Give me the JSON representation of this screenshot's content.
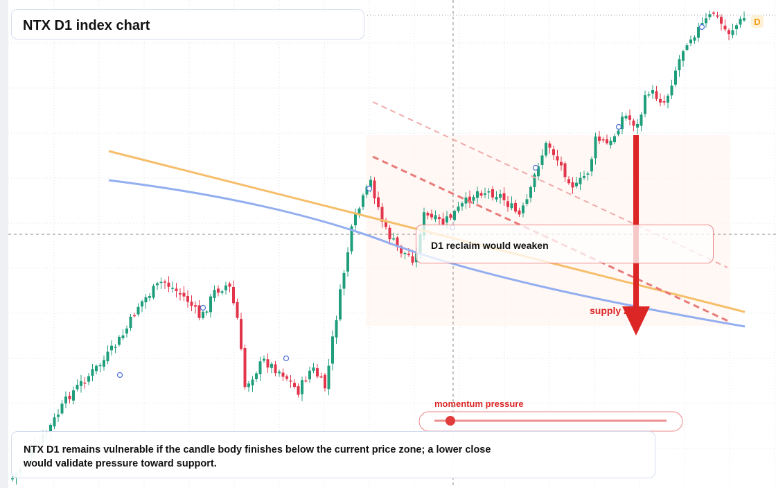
{
  "header": {
    "title": "NTX D1 index chart",
    "badge": "D"
  },
  "annotations": {
    "reclaim": "D1 reclaim would weaken",
    "zone": "supply zone",
    "momentum": "momentum pressure"
  },
  "caption": "NTX D1 remains vulnerable if the candle body finishes below the current price zone; a lower close would validate pressure toward support."
}
